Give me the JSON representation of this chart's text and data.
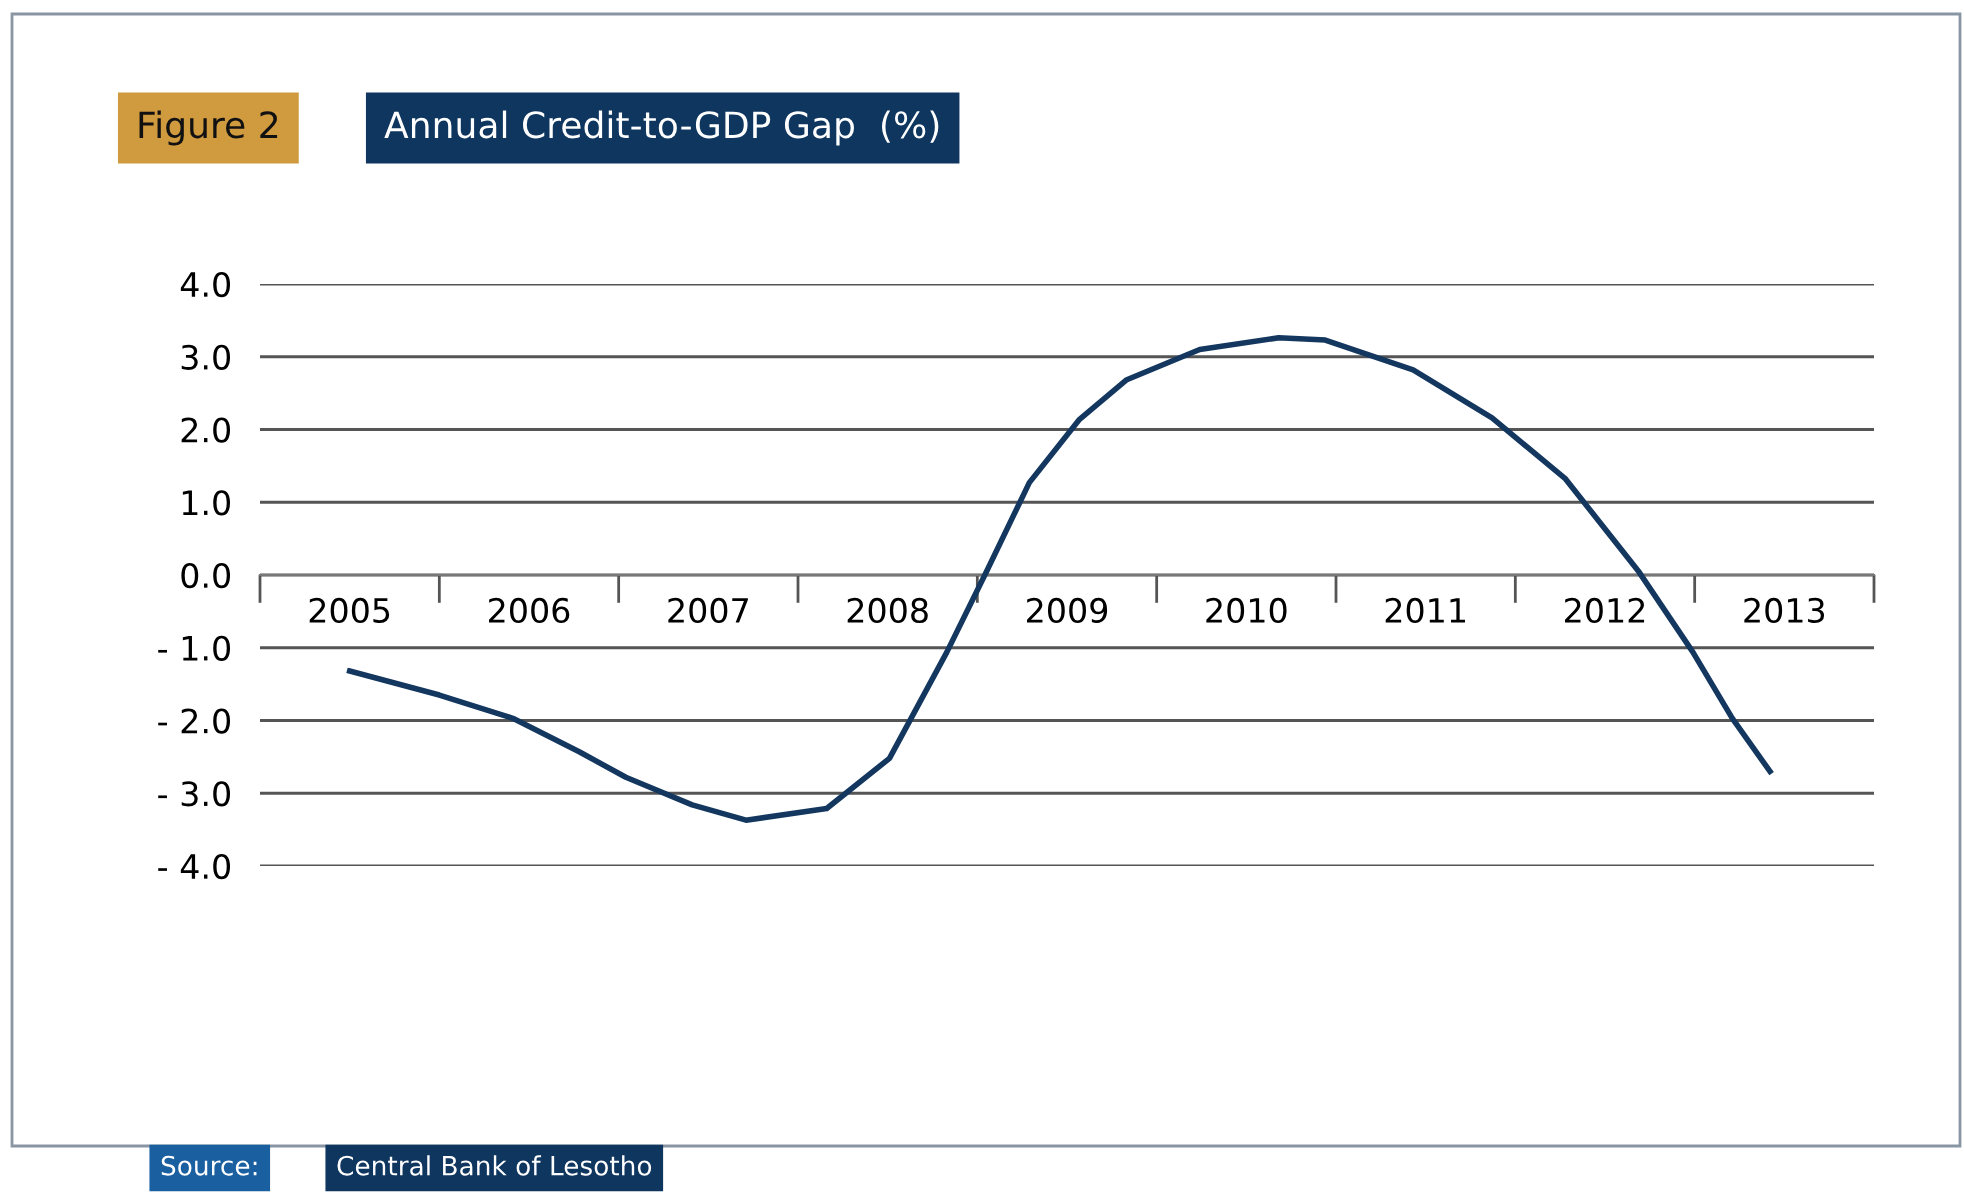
{
  "chart_data": {
    "type": "line",
    "subtitle": "Figure 2",
    "title": "Annual Credit-to-GDP Gap  (%)",
    "annotations": [
      "Source:",
      "Central Bank of Lesotho"
    ],
    "x": [
      2005.0,
      2005.5,
      2005.91,
      2006.28,
      2006.54,
      2006.91,
      2007.21,
      2007.66,
      2008.01,
      2008.33,
      2008.55,
      2008.79,
      2009.07,
      2009.33,
      2009.74,
      2010.18,
      2010.44,
      2010.93,
      2011.37,
      2011.78,
      2012.19,
      2012.49,
      2012.71,
      2012.92
    ],
    "series": [
      {
        "color": "#14375f",
        "values": [
          -1.32,
          -1.65,
          -1.97,
          -2.43,
          -2.78,
          -3.16,
          -3.37,
          -3.21,
          -2.52,
          -1.06,
          0.04,
          1.27,
          2.14,
          2.68,
          3.1,
          3.26,
          3.23,
          2.82,
          2.16,
          1.32,
          0.04,
          -1.06,
          -1.97,
          -2.7
        ]
      }
    ],
    "xlim": [
      2004.5,
      2013.5
    ],
    "xticks": [
      {
        "value": 2005,
        "label": "2005"
      },
      {
        "value": 2006,
        "label": "2006"
      },
      {
        "value": 2007,
        "label": "2007"
      },
      {
        "value": 2008,
        "label": "2008"
      },
      {
        "value": 2009,
        "label": "2009"
      },
      {
        "value": 2010,
        "label": "2010"
      },
      {
        "value": 2011,
        "label": "2011"
      },
      {
        "value": 2012,
        "label": "2012"
      },
      {
        "value": 2013,
        "label": "2013"
      },
      {
        "value": 2004.5,
        "label": null
      },
      {
        "value": 2005.5,
        "label": null
      },
      {
        "value": 2006.5,
        "label": null
      },
      {
        "value": 2007.5,
        "label": null
      },
      {
        "value": 2008.5,
        "label": null
      },
      {
        "value": 2009.5,
        "label": null
      },
      {
        "value": 2010.5,
        "label": null
      },
      {
        "value": 2011.5,
        "label": null
      },
      {
        "value": 2012.5,
        "label": null
      },
      {
        "value": 2013.5,
        "label": null
      }
    ],
    "ylim": [
      -4,
      4
    ],
    "yticks": [
      {
        "value": 4,
        "label": "4.0"
      },
      {
        "value": 3,
        "label": "3.0"
      },
      {
        "value": 2,
        "label": "2.0"
      },
      {
        "value": 1,
        "label": "1.0"
      },
      {
        "value": 0,
        "label": "0.0"
      },
      {
        "value": -1,
        "label": "- 1.0"
      },
      {
        "value": -2,
        "label": "- 2.0"
      },
      {
        "value": -3,
        "label": "- 3.0"
      },
      {
        "value": -4,
        "label": "- 4.0"
      }
    ],
    "grid": "y",
    "marker": "none",
    "line_style": "solid",
    "legend": false
  }
}
